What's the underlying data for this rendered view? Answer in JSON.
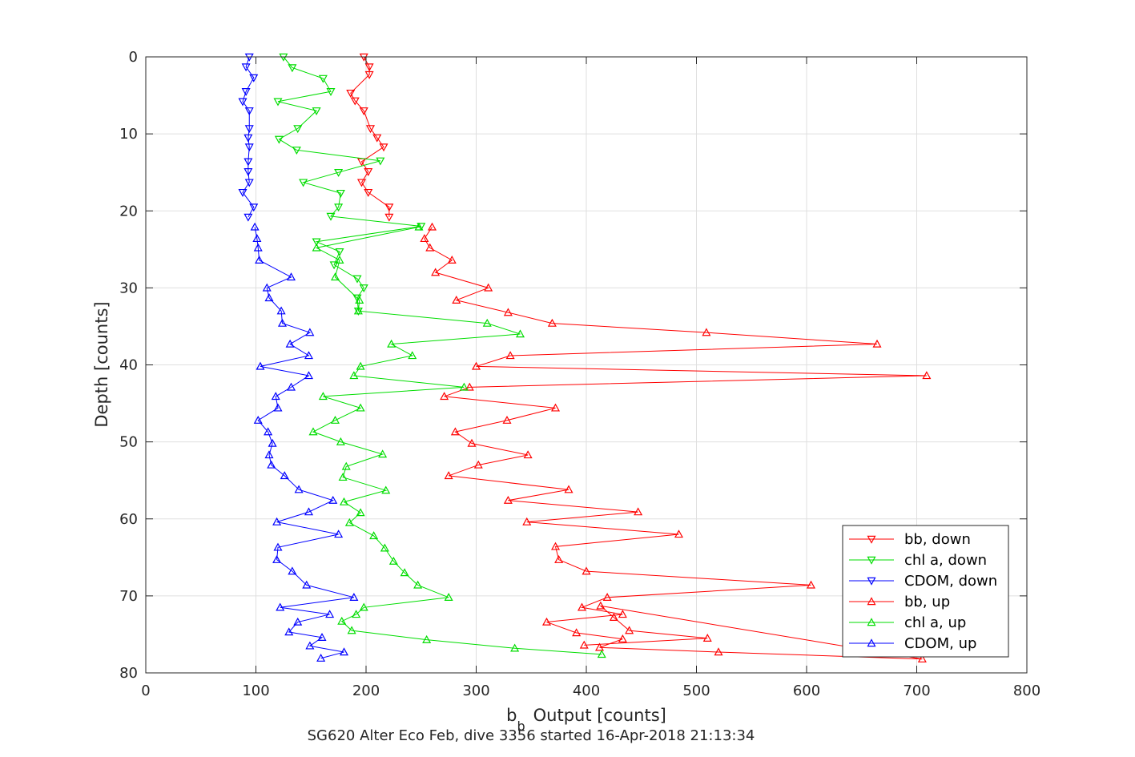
{
  "chart_data": {
    "type": "line",
    "xlabel": "Output [counts]",
    "xlabel_symbol": "b",
    "xlabel_subscript": "b",
    "ylabel": "Depth [counts]",
    "subtitle": "SG620 Alter Eco Feb, dive 3356 started 16-Apr-2018 21:13:34",
    "xlim": [
      0,
      800
    ],
    "ylim": [
      0,
      80
    ],
    "y_reversed": true,
    "grid": true,
    "xticks": [
      "0",
      "100",
      "200",
      "300",
      "400",
      "500",
      "600",
      "700",
      "800"
    ],
    "yticks": [
      "0",
      "10",
      "20",
      "30",
      "40",
      "50",
      "60",
      "70",
      "80"
    ],
    "legend_position": "bottom-right",
    "series": [
      {
        "name": "bb, down",
        "color": "#ff0000",
        "marker": "triangle-down",
        "depth": [
          0,
          1.3,
          2.3,
          4.7,
          5.7,
          7,
          9.3,
          10.5,
          11.7,
          13.6,
          14.9,
          16.3,
          17.6,
          19.5,
          20.8
        ],
        "values": [
          198,
          203,
          203,
          186,
          190,
          198,
          204,
          210,
          216,
          196,
          202,
          196,
          202,
          221,
          221
        ]
      },
      {
        "name": "chl a, down",
        "color": "#00dd00",
        "marker": "triangle-down",
        "depth": [
          0,
          1.4,
          2.8,
          4.5,
          5.8,
          7,
          9.3,
          10.7,
          12.1,
          13.5,
          15,
          16.3,
          17.7,
          19.5,
          20.7,
          22,
          24,
          25.3,
          27,
          28.8,
          30,
          31.3,
          33
        ],
        "values": [
          125,
          133,
          161,
          168,
          120,
          155,
          138,
          121,
          137,
          213,
          175,
          143,
          177,
          175,
          168,
          250,
          155,
          176,
          171,
          192,
          198,
          192,
          193
        ]
      },
      {
        "name": "CDOM, down",
        "color": "#0000ff",
        "marker": "triangle-down",
        "depth": [
          0,
          1.3,
          2.7,
          4.5,
          5.8,
          7,
          9.3,
          10.5,
          11.7,
          13.6,
          14.9,
          16.3,
          17.6,
          19.5,
          20.8
        ],
        "values": [
          94,
          91,
          98,
          91,
          88,
          94,
          94,
          93,
          94,
          93,
          93,
          94,
          88,
          98,
          93
        ]
      },
      {
        "name": "bb, up",
        "color": "#ff0000",
        "marker": "triangle-up",
        "depth": [
          22.1,
          23.6,
          24.8,
          26.4,
          28,
          30,
          31.6,
          33.2,
          34.6,
          35.8,
          37.3,
          38.8,
          40.2,
          41.4,
          42.9,
          44.1,
          45.6,
          47.2,
          48.7,
          50.2,
          51.7,
          53,
          54.4,
          56.2,
          57.6,
          59.1,
          60.4,
          62,
          63.6,
          65.3,
          66.8,
          68.6,
          70.2,
          71.5,
          72.4,
          73.4,
          74.8,
          75.6,
          76.7,
          77.3,
          78.2,
          71.3,
          72.8,
          74.5,
          75.5,
          76.4
        ],
        "values": [
          260,
          253,
          258,
          278,
          263,
          311,
          282,
          329,
          369,
          509,
          664,
          331,
          300,
          709,
          294,
          271,
          372,
          328,
          281,
          296,
          347,
          302,
          275,
          384,
          329,
          447,
          346,
          484,
          372,
          375,
          400,
          604,
          419,
          396,
          433,
          364,
          391,
          433,
          412,
          520,
          705,
          413,
          425,
          439,
          510,
          398
        ]
      },
      {
        "name": "chl a, up",
        "color": "#00dd00",
        "marker": "triangle-up",
        "depth": [
          22.1,
          24.8,
          26.4,
          28.6,
          31.6,
          33,
          34.6,
          36,
          37.3,
          38.8,
          40.2,
          41.4,
          42.9,
          44.1,
          45.6,
          47.2,
          48.7,
          50,
          51.6,
          53.2,
          54.6,
          56.3,
          57.8,
          59.2,
          60.5,
          62.2,
          63.8,
          65.5,
          67,
          68.6,
          70.2,
          71.5,
          72.4,
          73.3,
          74.5,
          75.7,
          76.8,
          77.6
        ],
        "values": [
          248,
          155,
          176,
          172,
          194,
          193,
          310,
          340,
          223,
          242,
          195,
          189,
          289,
          161,
          195,
          172,
          152,
          177,
          215,
          182,
          179,
          218,
          180,
          195,
          185,
          207,
          217,
          225,
          235,
          247,
          275,
          198,
          191,
          178,
          187,
          255,
          335,
          414
        ]
      },
      {
        "name": "CDOM, up",
        "color": "#0000ff",
        "marker": "triangle-up",
        "depth": [
          22.1,
          23.6,
          24.8,
          26.4,
          28.6,
          30,
          31.3,
          33,
          34.6,
          35.8,
          37.3,
          38.8,
          40.2,
          41.4,
          42.9,
          44.1,
          45.6,
          47.2,
          48.7,
          50.2,
          51.7,
          53,
          54.4,
          56.2,
          57.6,
          59.1,
          60.4,
          62,
          63.7,
          65.3,
          66.8,
          68.6,
          70.2,
          71.5,
          72.4,
          73.4,
          74.7,
          75.4,
          76.5,
          77.3,
          78.1
        ],
        "values": [
          99,
          101,
          102,
          103,
          132,
          110,
          112,
          123,
          124,
          149,
          131,
          148,
          104,
          148,
          132,
          118,
          120,
          102,
          111,
          115,
          112,
          114,
          126,
          139,
          170,
          148,
          119,
          175,
          120,
          119,
          133,
          146,
          189,
          122,
          167,
          138,
          130,
          160,
          149,
          180,
          159
        ]
      }
    ]
  }
}
